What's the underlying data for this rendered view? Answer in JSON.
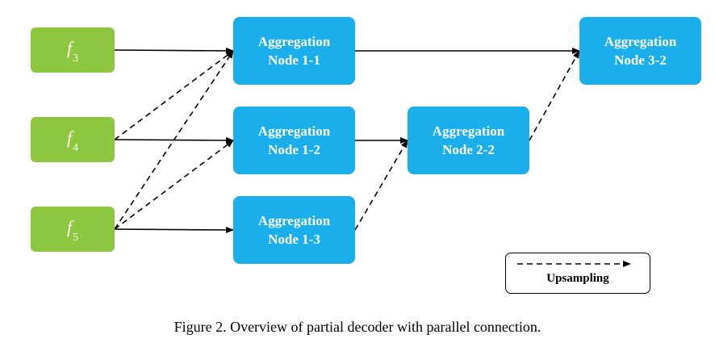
{
  "colors": {
    "input": "#8dc63f",
    "aggregation": "#1aaeeb",
    "text": "#ffffff",
    "edge": "#000000"
  },
  "inputs": [
    {
      "id": "f3",
      "base": "f",
      "sub": "3"
    },
    {
      "id": "f4",
      "base": "f",
      "sub": "4"
    },
    {
      "id": "f5",
      "base": "f",
      "sub": "5"
    }
  ],
  "nodes": [
    {
      "id": "n11",
      "line1": "Aggregation",
      "line2": "Node 1-1"
    },
    {
      "id": "n12",
      "line1": "Aggregation",
      "line2": "Node 1-2"
    },
    {
      "id": "n13",
      "line1": "Aggregation",
      "line2": "Node 1-3"
    },
    {
      "id": "n22",
      "line1": "Aggregation",
      "line2": "Node 2-2"
    },
    {
      "id": "n32",
      "line1": "Aggregation",
      "line2": "Node 3-2"
    }
  ],
  "edges": [
    {
      "from": "f3",
      "to": "n11",
      "style": "solid"
    },
    {
      "from": "f4",
      "to": "n11",
      "style": "dashed"
    },
    {
      "from": "f5",
      "to": "n11",
      "style": "dashed"
    },
    {
      "from": "f4",
      "to": "n12",
      "style": "solid"
    },
    {
      "from": "f5",
      "to": "n12",
      "style": "dashed"
    },
    {
      "from": "f5",
      "to": "n13",
      "style": "solid"
    },
    {
      "from": "n12",
      "to": "n22",
      "style": "solid"
    },
    {
      "from": "n13",
      "to": "n22",
      "style": "dashed"
    },
    {
      "from": "n11",
      "to": "n32",
      "style": "solid"
    },
    {
      "from": "n22",
      "to": "n32",
      "style": "dashed"
    }
  ],
  "legend": {
    "label": "Upsampling",
    "style": "dashed"
  },
  "caption": "Figure 2. Overview of partial decoder with parallel connection."
}
